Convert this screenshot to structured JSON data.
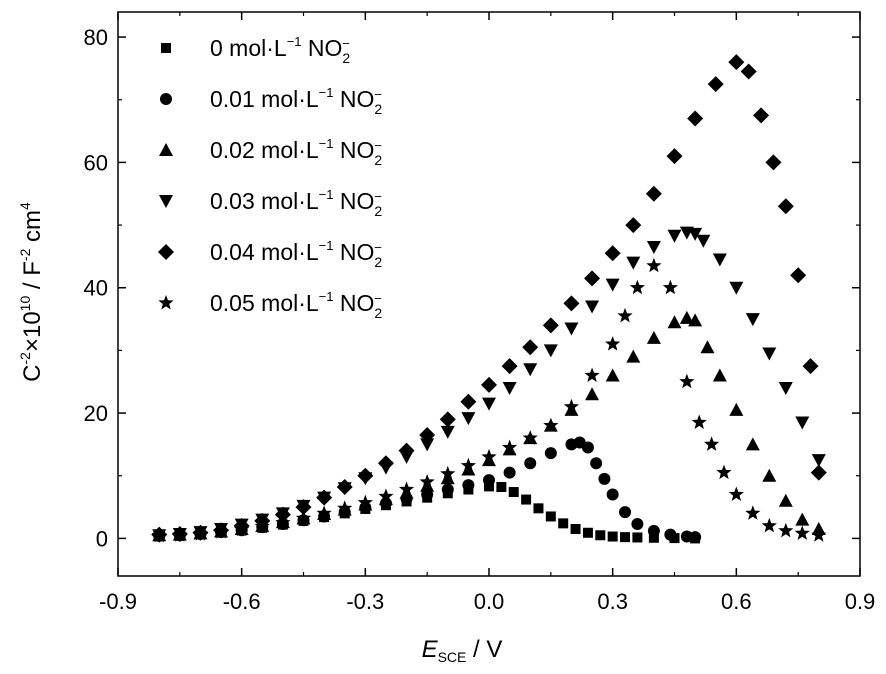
{
  "chart_data": {
    "type": "scatter",
    "title": "",
    "xlabel": {
      "main": "E",
      "sub": "SCE",
      "rest": " / V"
    },
    "ylabel": {
      "p1": "C",
      "p1_sup": "-2",
      "p2": "×10",
      "p2_sup": "10",
      "p3": " / F",
      "p3_sup": "-2",
      "p4": " cm",
      "p4_sup": "4"
    },
    "xlim": [
      -0.9,
      0.9
    ],
    "ylim": [
      -6,
      84
    ],
    "xticks": [
      "-0.9",
      "-0.6",
      "-0.3",
      "0.0",
      "0.3",
      "0.6",
      "0.9"
    ],
    "xtick_values": [
      -0.9,
      -0.6,
      -0.3,
      0.0,
      0.3,
      0.6,
      0.9
    ],
    "yticks": [
      "0",
      "20",
      "40",
      "60",
      "80"
    ],
    "ytick_values": [
      0,
      20,
      40,
      60,
      80
    ],
    "grid": false,
    "legend_position": "top-left",
    "series": [
      {
        "name": "0 mol·L⁻¹ NO₂⁻",
        "label": {
          "a": "0 mol·L",
          "sup": "−1",
          "b": " NO",
          "sub": "2",
          "subsup": "−"
        },
        "marker": "square",
        "x": [
          -0.8,
          -0.75,
          -0.7,
          -0.65,
          -0.6,
          -0.55,
          -0.5,
          -0.45,
          -0.4,
          -0.35,
          -0.3,
          -0.25,
          -0.2,
          -0.15,
          -0.1,
          -0.05,
          0.0,
          0.03,
          0.06,
          0.09,
          0.12,
          0.15,
          0.18,
          0.21,
          0.24,
          0.27,
          0.3,
          0.33,
          0.36,
          0.4,
          0.45,
          0.5
        ],
        "y": [
          0.4,
          0.5,
          0.7,
          1.0,
          1.3,
          1.7,
          2.2,
          2.8,
          3.4,
          4.0,
          4.7,
          5.3,
          5.9,
          6.5,
          7.2,
          7.8,
          8.3,
          8.2,
          7.4,
          6.2,
          4.8,
          3.5,
          2.4,
          1.5,
          0.9,
          0.5,
          0.3,
          0.2,
          0.15,
          0.1,
          0.05,
          0.0
        ]
      },
      {
        "name": "0.01 mol·L⁻¹ NO₂⁻",
        "label": {
          "a": "0.01 mol·L",
          "sup": "−1",
          "b": " NO",
          "sub": "2",
          "subsup": "−"
        },
        "marker": "circle",
        "x": [
          -0.8,
          -0.75,
          -0.7,
          -0.65,
          -0.6,
          -0.55,
          -0.5,
          -0.45,
          -0.4,
          -0.35,
          -0.3,
          -0.25,
          -0.2,
          -0.15,
          -0.1,
          -0.05,
          0.0,
          0.05,
          0.1,
          0.15,
          0.2,
          0.22,
          0.24,
          0.26,
          0.28,
          0.3,
          0.33,
          0.36,
          0.4,
          0.44,
          0.48,
          0.5
        ],
        "y": [
          0.4,
          0.5,
          0.7,
          1.0,
          1.3,
          1.8,
          2.3,
          2.9,
          3.5,
          4.2,
          4.9,
          5.6,
          6.3,
          7.0,
          7.8,
          8.5,
          9.3,
          10.5,
          12.0,
          13.6,
          15.0,
          15.3,
          14.5,
          12.0,
          9.5,
          7.0,
          4.2,
          2.3,
          1.2,
          0.6,
          0.3,
          0.2
        ]
      },
      {
        "name": "0.02 mol·L⁻¹ NO₂⁻",
        "label": {
          "a": "0.02 mol·L",
          "sup": "−1",
          "b": " NO",
          "sub": "2",
          "subsup": "−"
        },
        "marker": "triangle-up",
        "x": [
          -0.8,
          -0.75,
          -0.7,
          -0.65,
          -0.6,
          -0.55,
          -0.5,
          -0.45,
          -0.4,
          -0.35,
          -0.3,
          -0.25,
          -0.2,
          -0.15,
          -0.1,
          -0.05,
          0.0,
          0.05,
          0.1,
          0.15,
          0.2,
          0.25,
          0.3,
          0.35,
          0.4,
          0.45,
          0.48,
          0.5,
          0.53,
          0.56,
          0.6,
          0.64,
          0.68,
          0.72,
          0.76,
          0.8
        ],
        "y": [
          0.5,
          0.6,
          0.8,
          1.1,
          1.5,
          2.0,
          2.6,
          3.2,
          3.9,
          4.6,
          5.4,
          6.3,
          7.3,
          8.4,
          9.6,
          11.0,
          12.5,
          14.2,
          16.0,
          18.0,
          20.5,
          23.0,
          26.0,
          29.0,
          32.0,
          34.5,
          35.2,
          34.8,
          30.5,
          26.0,
          20.5,
          15.0,
          10.0,
          6.0,
          3.0,
          1.5
        ]
      },
      {
        "name": "0.03 mol·L⁻¹ NO₂⁻",
        "label": {
          "a": "0.03 mol·L",
          "sup": "−1",
          "b": " NO",
          "sub": "2",
          "subsup": "−"
        },
        "marker": "triangle-down",
        "x": [
          -0.8,
          -0.75,
          -0.7,
          -0.65,
          -0.6,
          -0.55,
          -0.5,
          -0.45,
          -0.4,
          -0.35,
          -0.3,
          -0.25,
          -0.2,
          -0.15,
          -0.1,
          -0.05,
          0.0,
          0.05,
          0.1,
          0.15,
          0.2,
          0.25,
          0.3,
          0.35,
          0.4,
          0.45,
          0.48,
          0.5,
          0.52,
          0.56,
          0.6,
          0.64,
          0.68,
          0.72,
          0.76,
          0.8
        ],
        "y": [
          0.5,
          0.7,
          1.0,
          1.5,
          2.2,
          3.0,
          4.0,
          5.2,
          6.5,
          8.0,
          9.6,
          11.3,
          13.0,
          15.0,
          17.0,
          19.2,
          21.5,
          24.0,
          27.0,
          30.0,
          33.5,
          37.0,
          40.5,
          44.0,
          46.5,
          48.3,
          48.8,
          48.6,
          47.5,
          44.5,
          40.0,
          35.0,
          29.5,
          24.0,
          18.5,
          12.5
        ]
      },
      {
        "name": "0.04 mol·L⁻¹ NO₂⁻",
        "label": {
          "a": "0.04 mol·L",
          "sup": "−1",
          "b": " NO",
          "sub": "2",
          "subsup": "−"
        },
        "marker": "diamond",
        "x": [
          -0.8,
          -0.75,
          -0.7,
          -0.65,
          -0.6,
          -0.55,
          -0.5,
          -0.45,
          -0.4,
          -0.35,
          -0.3,
          -0.25,
          -0.2,
          -0.15,
          -0.1,
          -0.05,
          0.0,
          0.05,
          0.1,
          0.15,
          0.2,
          0.25,
          0.3,
          0.35,
          0.4,
          0.45,
          0.5,
          0.55,
          0.6,
          0.63,
          0.66,
          0.69,
          0.72,
          0.75,
          0.78,
          0.8
        ],
        "y": [
          0.6,
          0.7,
          0.9,
          1.3,
          2.0,
          2.8,
          3.8,
          5.0,
          6.5,
          8.2,
          10.0,
          12.0,
          14.0,
          16.5,
          19.0,
          21.8,
          24.5,
          27.5,
          30.5,
          34.0,
          37.5,
          41.5,
          45.5,
          50.0,
          55.0,
          61.0,
          67.0,
          72.5,
          76.0,
          74.5,
          67.5,
          60.0,
          53.0,
          42.0,
          27.5,
          10.5
        ]
      },
      {
        "name": "0.05 mol·L⁻¹ NO₂⁻",
        "label": {
          "a": "0.05 mol·L",
          "sup": "−1",
          "b": " NO",
          "sub": "2",
          "subsup": "−"
        },
        "marker": "star",
        "x": [
          -0.8,
          -0.75,
          -0.7,
          -0.65,
          -0.6,
          -0.55,
          -0.5,
          -0.45,
          -0.4,
          -0.35,
          -0.3,
          -0.25,
          -0.2,
          -0.15,
          -0.1,
          -0.05,
          0.0,
          0.05,
          0.1,
          0.15,
          0.2,
          0.25,
          0.3,
          0.33,
          0.36,
          0.4,
          0.44,
          0.48,
          0.51,
          0.54,
          0.57,
          0.6,
          0.64,
          0.68,
          0.72,
          0.76,
          0.8
        ],
        "y": [
          0.4,
          0.5,
          0.7,
          1.0,
          1.4,
          1.9,
          2.5,
          3.2,
          4.0,
          4.8,
          5.7,
          6.7,
          7.8,
          9.0,
          10.3,
          11.6,
          13.0,
          14.5,
          16.0,
          18.0,
          21.0,
          26.0,
          31.0,
          35.5,
          40.0,
          43.5,
          40.0,
          25.0,
          18.5,
          15.0,
          10.5,
          7.0,
          4.0,
          2.0,
          1.2,
          0.8,
          0.5
        ]
      }
    ]
  }
}
